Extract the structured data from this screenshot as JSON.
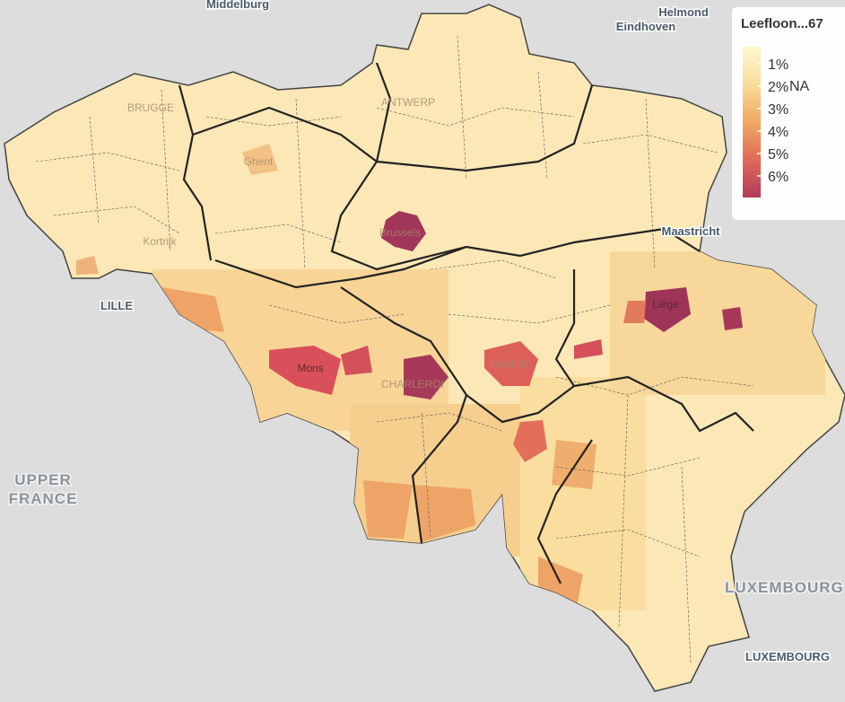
{
  "map": {
    "places": [
      "Middelburg",
      "Helmond",
      "Eindhoven",
      "Maastricht",
      "LILLE",
      "UPPER",
      "FRANCE",
      "LUXEMBOURG",
      "LUXEMBOURG",
      "Mons",
      "Liège",
      "NAMUR",
      "CHARLEROI",
      "BRUGGE",
      "ANTWERP",
      "Ghent",
      "Kortrijk",
      "Brussels"
    ]
  },
  "legend": {
    "title": "Leefloon...67",
    "ticks": [
      "1%",
      "2%",
      "3%",
      "4%",
      "5%",
      "6%"
    ],
    "na_label": "NA"
  }
}
